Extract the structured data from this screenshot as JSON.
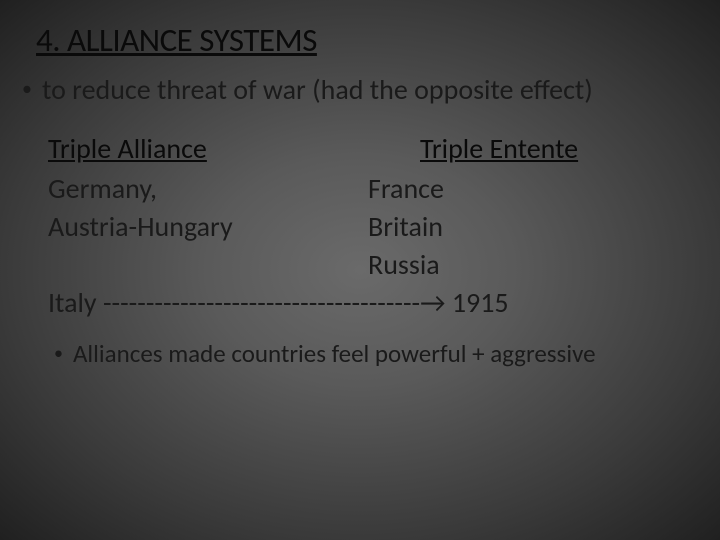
{
  "heading": "4. ALLIANCE SYSTEMS",
  "main_bullet": "to reduce threat of war (had the opposite effect)",
  "columns": {
    "left": {
      "header": "Triple Alliance",
      "items": [
        "Germany,",
        "Austria-Hungary"
      ]
    },
    "right": {
      "header": "Triple Entente",
      "items": [
        "France",
        "Britain",
        "Russia"
      ]
    }
  },
  "italy_line": {
    "country": "Italy",
    "dashes": "-------------------------------------",
    "arrow": "→",
    "year": "1915"
  },
  "sub_bullet": "Alliances made countries feel powerful + aggressive",
  "colors": {
    "text": "#1a1a1a",
    "heading": "#0a0a0a",
    "bg_center": "#6a6a6a",
    "bg_edge": "#202020"
  },
  "fonts": {
    "heading_size": 33,
    "body_size": 28,
    "sub_size": 25
  }
}
